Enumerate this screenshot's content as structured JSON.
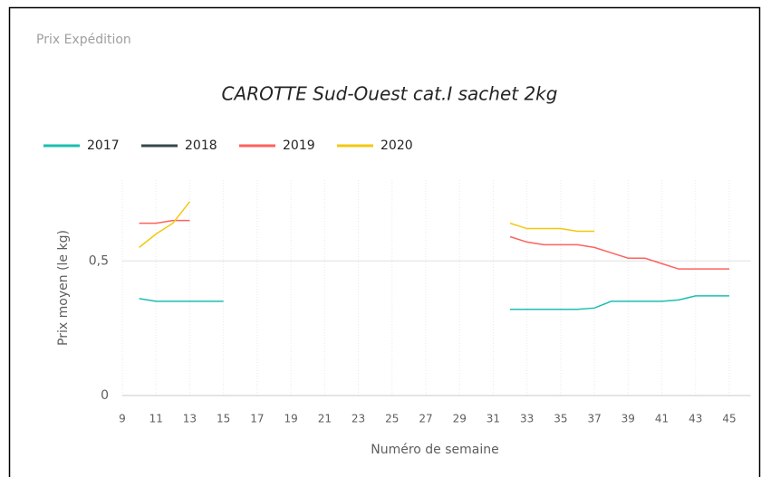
{
  "header": "Prix Expédition",
  "chart_data": {
    "type": "line",
    "title": "CAROTTE Sud-Ouest cat.I sachet 2kg",
    "x_label": "Numéro de semaine",
    "y_label": "Prix moyen  (le kg)",
    "x": [
      10,
      11,
      12,
      13,
      14,
      15,
      16,
      17,
      18,
      19,
      20,
      21,
      22,
      23,
      24,
      25,
      26,
      27,
      28,
      29,
      30,
      31,
      32,
      33,
      34,
      35,
      36,
      37,
      38,
      39,
      40,
      41,
      42,
      43,
      44,
      45
    ],
    "series": [
      {
        "name": "2017",
        "color": "#1abfb0",
        "values": [
          0.36,
          0.35,
          0.35,
          0.35,
          0.35,
          0.35,
          null,
          null,
          null,
          null,
          null,
          null,
          null,
          null,
          null,
          null,
          null,
          null,
          null,
          null,
          null,
          null,
          0.32,
          0.32,
          0.32,
          0.32,
          0.32,
          0.325,
          0.35,
          0.35,
          0.35,
          0.35,
          0.355,
          0.37,
          0.37,
          0.37
        ]
      },
      {
        "name": "2018",
        "color": "#374649",
        "values": [
          null,
          null,
          null,
          null,
          null,
          null,
          null,
          null,
          null,
          null,
          null,
          null,
          null,
          null,
          null,
          null,
          null,
          null,
          null,
          null,
          null,
          null,
          null,
          null,
          null,
          null,
          null,
          null,
          null,
          null,
          null,
          null,
          null,
          null,
          null,
          null
        ]
      },
      {
        "name": "2019",
        "color": "#fd625e",
        "values": [
          0.64,
          0.64,
          0.65,
          0.65,
          null,
          null,
          null,
          null,
          null,
          null,
          null,
          null,
          null,
          null,
          null,
          null,
          null,
          null,
          null,
          null,
          null,
          null,
          0.59,
          0.57,
          0.56,
          0.56,
          0.56,
          0.55,
          0.53,
          0.51,
          0.51,
          0.49,
          0.47,
          0.47,
          0.47,
          0.47
        ]
      },
      {
        "name": "2020",
        "color": "#f2c80f",
        "values": [
          0.55,
          0.6,
          0.64,
          0.72,
          null,
          null,
          null,
          null,
          null,
          null,
          null,
          null,
          null,
          null,
          null,
          null,
          null,
          null,
          null,
          null,
          null,
          null,
          0.64,
          0.62,
          0.62,
          0.62,
          0.61,
          0.61,
          null,
          null,
          null,
          null,
          null,
          null,
          null,
          null
        ]
      }
    ],
    "xlim": [
      9,
      46
    ],
    "xticks": [
      9,
      11,
      13,
      15,
      17,
      19,
      21,
      23,
      25,
      27,
      29,
      31,
      33,
      35,
      37,
      39,
      41,
      43,
      45
    ],
    "ylim": [
      0,
      0.8
    ],
    "yticks": [
      0,
      {
        "value": 0.5,
        "label": "0,5"
      }
    ],
    "grid": true,
    "legend": "top-left"
  }
}
